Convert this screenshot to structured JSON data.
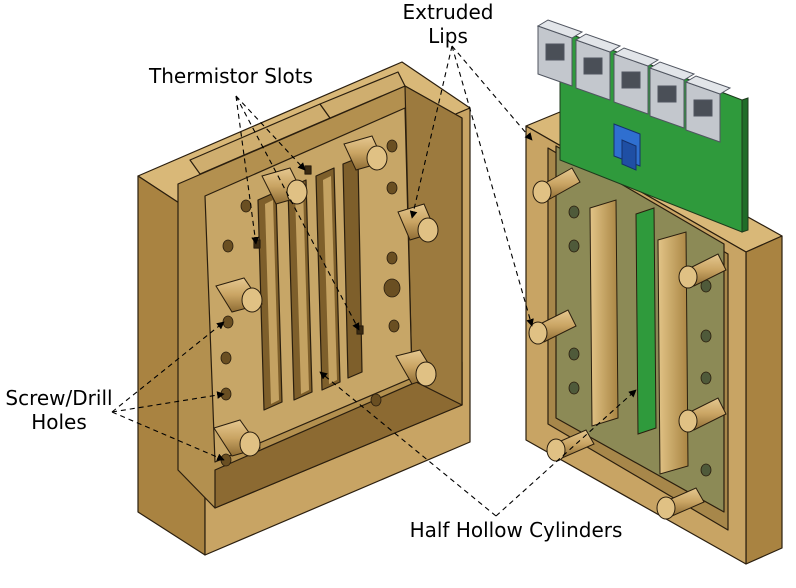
{
  "labels": {
    "extruded_lips": [
      "Extruded",
      "Lips"
    ],
    "thermistor_slots": "Thermistor Slots",
    "screw_drill_holes": [
      "Screw/Drill",
      "Holes"
    ],
    "half_hollow_cylinders": "Half Hollow Cylinders"
  },
  "colors": {
    "housing": "#c8a464",
    "housing_dark": "#9c7a3e",
    "housing_shadow": "#7a5c2c",
    "pcb_green": "#2f9a3c",
    "pcb_panel": "#8c8a56",
    "connector_grey": "#b8bcc2",
    "jumper_blue": "#2f6fd0",
    "outline": "#2a1e0e"
  },
  "icons": [
    "rj45-connector-icon",
    "screw-hole-icon",
    "pin-cylinder-icon"
  ]
}
